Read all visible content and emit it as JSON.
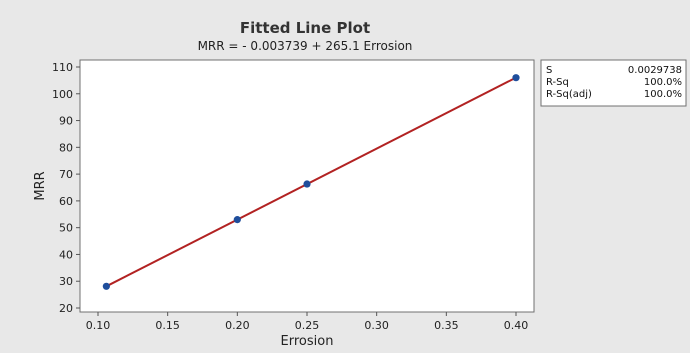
{
  "chart_data": {
    "type": "scatter",
    "title": "Fitted Line Plot",
    "subtitle": "MRR = - 0.003739 + 265.1 Errosion",
    "xlabel": "Errosion",
    "ylabel": "MRR",
    "xlim": [
      0.1,
      0.4
    ],
    "ylim": [
      20,
      110
    ],
    "x_ticks": [
      0.1,
      0.15,
      0.2,
      0.25,
      0.3,
      0.35,
      0.4
    ],
    "x_tick_labels": [
      "0.10",
      "0.15",
      "0.20",
      "0.25",
      "0.30",
      "0.35",
      "0.40"
    ],
    "y_ticks": [
      20,
      30,
      40,
      50,
      60,
      70,
      80,
      90,
      100,
      110
    ],
    "y_tick_labels": [
      "20",
      "30",
      "40",
      "50",
      "60",
      "70",
      "80",
      "90",
      "100",
      "110"
    ],
    "grid": false,
    "series": [
      {
        "type": "scatter",
        "x": [
          0.106,
          0.2,
          0.25,
          0.4
        ],
        "y": [
          28.1,
          53.0,
          66.3,
          106.0
        ],
        "color": "#1f4e9c"
      },
      {
        "type": "line",
        "fit": {
          "intercept": -0.003739,
          "slope": 265.1
        },
        "x": [
          0.106,
          0.4
        ],
        "color": "#b22222"
      }
    ],
    "stats_table": {
      "rows": [
        {
          "label": "S",
          "value": "0.0029738"
        },
        {
          "label": "R-Sq",
          "value": "100.0%"
        },
        {
          "label": "R-Sq(adj)",
          "value": "100.0%"
        }
      ]
    }
  },
  "colors": {
    "background": "#e8e8e8",
    "plot_area": "#ffffff",
    "points": "#1f4e9c",
    "fit_line": "#b22222"
  }
}
